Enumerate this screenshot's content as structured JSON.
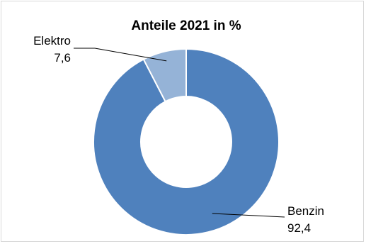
{
  "chart_data": {
    "type": "pie",
    "variant": "doughnut",
    "title": "Anteile 2021 in %",
    "slices": [
      {
        "label": "Benzin",
        "value": "92,4",
        "number": 92.4,
        "color": "#4F81BD"
      },
      {
        "label": "Elektro",
        "value": "7,6",
        "number": 7.6,
        "color": "#95B3D7"
      }
    ],
    "start_angle_deg": 0,
    "direction": "clockwise",
    "legend": "none"
  }
}
